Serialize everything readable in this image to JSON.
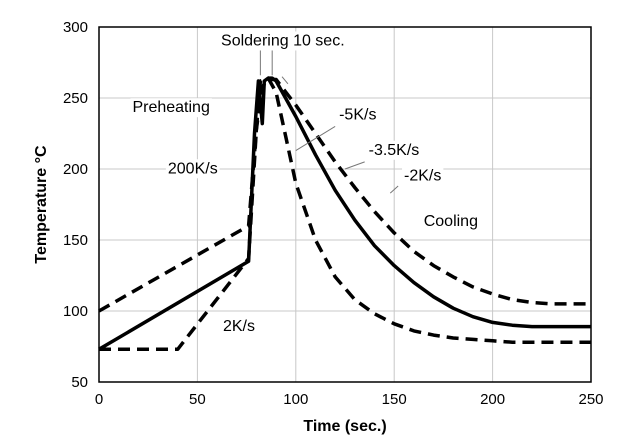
{
  "chart_data": {
    "type": "line",
    "xlabel": "Time (sec.)",
    "ylabel": "Temperature °C",
    "xlim": [
      0,
      250
    ],
    "ylim": [
      50,
      300
    ],
    "xticks": [
      0,
      50,
      100,
      150,
      200,
      250
    ],
    "yticks": [
      50,
      100,
      150,
      200,
      250,
      300
    ],
    "grid": true,
    "series": [
      {
        "name": "upper-dashed",
        "style": "dashed",
        "x": [
          0,
          76,
          80,
          83,
          86,
          90,
          100,
          110,
          120,
          130,
          140,
          150,
          160,
          170,
          180,
          190,
          200,
          210,
          220,
          230,
          250
        ],
        "y": [
          100,
          160,
          228,
          258,
          263,
          263,
          245,
          225,
          205,
          187,
          170,
          155,
          142,
          132,
          124,
          117,
          112,
          108,
          106,
          105,
          105
        ]
      },
      {
        "name": "middle-solid",
        "style": "solid",
        "x": [
          0,
          76,
          79,
          81,
          83,
          84,
          86,
          88,
          90,
          100,
          110,
          120,
          130,
          140,
          150,
          160,
          170,
          180,
          190,
          200,
          210,
          220,
          250
        ],
        "y": [
          73,
          135,
          225,
          262,
          232,
          262,
          264,
          264,
          262,
          237,
          210,
          185,
          164,
          146,
          132,
          120,
          110,
          102,
          96,
          92,
          90,
          89,
          89
        ]
      },
      {
        "name": "lower-dashed",
        "style": "dashed",
        "x": [
          0,
          40,
          76,
          80,
          82,
          86,
          90,
          95,
          100,
          110,
          120,
          130,
          140,
          150,
          160,
          170,
          180,
          190,
          200,
          210,
          220,
          230,
          250
        ],
        "y": [
          73,
          73,
          137,
          228,
          262,
          264,
          254,
          222,
          190,
          150,
          124,
          108,
          98,
          91,
          86,
          83,
          81,
          80,
          79,
          78,
          78,
          78,
          78
        ]
      }
    ],
    "annotations": [
      {
        "text": "Soldering 10 sec.",
        "x": 62,
        "y": 287
      },
      {
        "text": "Preheating",
        "x": 17,
        "y": 240
      },
      {
        "text": "200K/s",
        "x": 35,
        "y": 197
      },
      {
        "text": "-5K/s",
        "x": 122,
        "y": 235
      },
      {
        "text": "-3.5K/s",
        "x": 137,
        "y": 210
      },
      {
        "text": "-2K/s",
        "x": 155,
        "y": 192
      },
      {
        "text": "Cooling",
        "x": 165,
        "y": 160
      },
      {
        "text": "2K/s",
        "x": 63,
        "y": 86
      }
    ]
  }
}
